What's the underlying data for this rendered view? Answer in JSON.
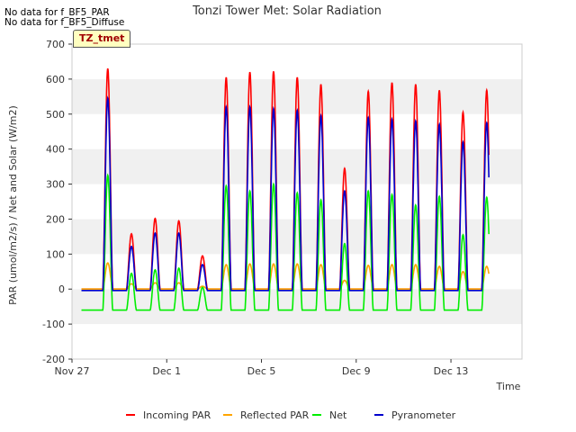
{
  "notes": [
    "No data for f_BF5_PAR",
    "No data for f_BF5_Diffuse"
  ],
  "badge": "TZ_tmet",
  "chart_data": {
    "type": "line",
    "title": "Tonzi Tower Met: Solar Radiation",
    "xlabel": "Time",
    "ylabel": "PAR (umol/m2/s) / Net and Solar (W/m2)",
    "xlim": [
      0,
      19
    ],
    "ylim": [
      -200,
      700
    ],
    "yticks": [
      -200,
      -100,
      0,
      100,
      200,
      300,
      400,
      500,
      600,
      700
    ],
    "xticks": [
      {
        "day": 0,
        "label": "Nov 27"
      },
      {
        "day": 4,
        "label": "Dec 1"
      },
      {
        "day": 8,
        "label": "Dec 5"
      },
      {
        "day": 12,
        "label": "Dec 9"
      },
      {
        "day": 16,
        "label": "Dec 13"
      }
    ],
    "grid": "horizontal bands",
    "legend": "bottom",
    "colors": {
      "incoming_par": "#ff0000",
      "reflected_par": "#ffa500",
      "net": "#00ee00",
      "pyranometer": "#0000cc"
    },
    "series": [
      {
        "name": "Incoming PAR",
        "key": "incoming_par",
        "night": 0,
        "peaks": [
          630,
          158,
          202,
          195,
          95,
          605,
          620,
          622,
          605,
          585,
          345,
          565,
          590,
          585,
          568,
          505,
          568
        ]
      },
      {
        "name": "Reflected PAR",
        "key": "reflected_par",
        "night": 0,
        "peaks": [
          75,
          15,
          18,
          18,
          8,
          70,
          72,
          72,
          72,
          70,
          25,
          68,
          70,
          70,
          65,
          50,
          65
        ]
      },
      {
        "name": "Net",
        "key": "net",
        "night": -60,
        "peaks": [
          325,
          45,
          55,
          60,
          5,
          295,
          280,
          300,
          275,
          255,
          130,
          280,
          270,
          240,
          265,
          155,
          262
        ]
      },
      {
        "name": "Pyranometer",
        "key": "pyranometer",
        "night": -4,
        "peaks": [
          545,
          122,
          160,
          160,
          70,
          520,
          520,
          515,
          510,
          495,
          280,
          490,
          485,
          480,
          470,
          420,
          475
        ]
      }
    ]
  }
}
